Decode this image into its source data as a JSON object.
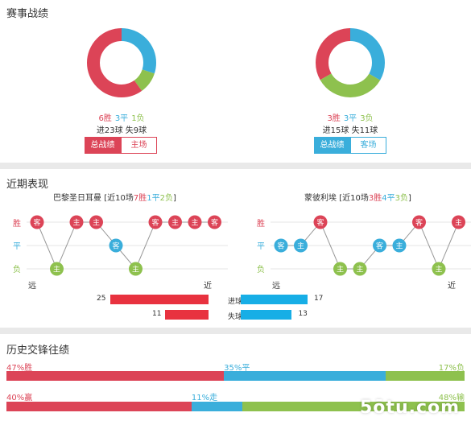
{
  "colors": {
    "win": "#dc4457",
    "draw": "#3aaedb",
    "loss": "#8ec14e",
    "goal_bar": "#e8323f",
    "goal_bar_right": "#17aee6"
  },
  "overall": {
    "title": "赛事战绩",
    "left": {
      "record": {
        "w": "6胜",
        "d": "3平",
        "l": "1负"
      },
      "donut": {
        "win": 6,
        "draw": 3,
        "loss": 1
      },
      "goals": "进23球 失9球",
      "btn_total": "总战绩",
      "btn_venue": "主场"
    },
    "right": {
      "record": {
        "w": "3胜",
        "d": "3平",
        "l": "3负"
      },
      "donut": {
        "win": 3,
        "draw": 3,
        "loss": 3
      },
      "goals": "进15球 失11球",
      "btn_total": "总战绩",
      "btn_venue": "客场"
    }
  },
  "recent": {
    "title": "近期表现",
    "left": {
      "team": "巴黎圣日耳曼",
      "summary_prefix": "[近10场",
      "w": "7胜",
      "d": "1平",
      "l": "2负",
      "summary_suffix": "]",
      "y_labels": {
        "win": "胜",
        "draw": "平",
        "loss": "负"
      },
      "far": "远",
      "near": "近",
      "matches": [
        {
          "result": "win",
          "venue": "客"
        },
        {
          "result": "loss",
          "venue": "主"
        },
        {
          "result": "win",
          "venue": "主"
        },
        {
          "result": "win",
          "venue": "主"
        },
        {
          "result": "draw",
          "venue": "客"
        },
        {
          "result": "loss",
          "venue": "主"
        },
        {
          "result": "win",
          "venue": "客"
        },
        {
          "result": "win",
          "venue": "主"
        },
        {
          "result": "win",
          "venue": "主"
        },
        {
          "result": "win",
          "venue": "客"
        }
      ],
      "goals_for": 25,
      "goals_against": 11
    },
    "right": {
      "team": "蒙彼利埃",
      "summary_prefix": "[近10场",
      "w": "3胜",
      "d": "4平",
      "l": "3负",
      "summary_suffix": "]",
      "y_labels": {
        "win": "胜",
        "draw": "平",
        "loss": "负"
      },
      "far": "远",
      "near": "近",
      "matches": [
        {
          "result": "draw",
          "venue": "客"
        },
        {
          "result": "draw",
          "venue": "主"
        },
        {
          "result": "win",
          "venue": "客"
        },
        {
          "result": "loss",
          "venue": "主"
        },
        {
          "result": "loss",
          "venue": "主"
        },
        {
          "result": "draw",
          "venue": "客"
        },
        {
          "result": "draw",
          "venue": "主"
        },
        {
          "result": "win",
          "venue": "客"
        },
        {
          "result": "loss",
          "venue": "主"
        },
        {
          "result": "win",
          "venue": "主"
        }
      ],
      "goals_for": 17,
      "goals_against": 13
    },
    "goals_for_label": "进球",
    "goals_against_label": "失球",
    "bar_max": 25
  },
  "history": {
    "title": "历史交锋往绩",
    "row1": {
      "a": 47,
      "b": 35,
      "c": 17,
      "a_label": "47%胜",
      "b_label": "35%平",
      "c_label": "17%负"
    },
    "row2": {
      "a": 40,
      "b": 11,
      "c": 48,
      "a_label": "40%赢",
      "b_label": "11%走",
      "c_label": "48%输"
    }
  },
  "watermark": "5ōtu.com"
}
